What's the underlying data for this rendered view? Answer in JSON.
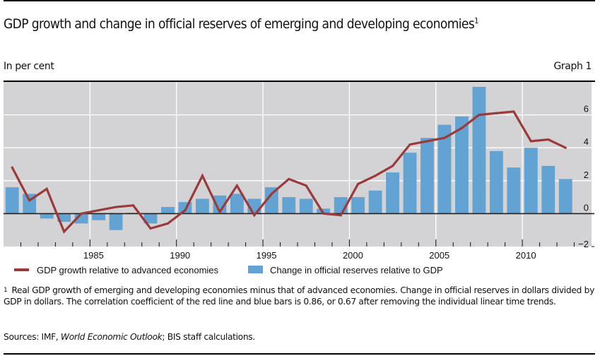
{
  "header": {
    "title": "GDP growth and change in official reserves of emerging and developing economies",
    "title_footnote_mark": "1",
    "units": "In per cent",
    "graph_label": "Graph 1"
  },
  "footnote": {
    "mark": "1",
    "text": "Real GDP growth of emerging and developing economies minus that of advanced economies. Change in official reserves in dollars divided by GDP in dollars. The correlation coefficient of the red line and blue bars is 0.86, or 0.67 after removing the individual linear time trends."
  },
  "sources": {
    "prefix": "Sources: IMF, ",
    "publication": "World Economic Outlook",
    "suffix": "; BIS staff calculations."
  },
  "colors": {
    "bar": "#62a3d4",
    "line": "#9b3a3a",
    "plot_background": "#d3d3d5",
    "gridline": "#ffffff"
  },
  "chart_data": {
    "type": "bar+line",
    "title": "GDP growth and change in official reserves of emerging and developing economies",
    "ylabel": "In per cent",
    "xlabel": "",
    "xlim": [
      1980,
      2014
    ],
    "ylim": [
      -2,
      8
    ],
    "y_ticks": [
      -2,
      0,
      2,
      4,
      6
    ],
    "y_tick_labels": [
      "−2",
      "0",
      "2",
      "4",
      "6"
    ],
    "y_axis_side": "right",
    "x_ticks": [
      1985,
      1990,
      1995,
      2000,
      2005,
      2010
    ],
    "x_tick_labels": [
      "1985",
      "1990",
      "1995",
      "2000",
      "2005",
      "2010"
    ],
    "grid": true,
    "legend_position": "bottom",
    "categories": [
      1980,
      1981,
      1982,
      1983,
      1984,
      1985,
      1986,
      1987,
      1988,
      1989,
      1990,
      1991,
      1992,
      1993,
      1994,
      1995,
      1996,
      1997,
      1998,
      1999,
      2000,
      2001,
      2002,
      2003,
      2004,
      2005,
      2006,
      2007,
      2008,
      2009,
      2010,
      2011,
      2012
    ],
    "series": [
      {
        "name": "GDP growth relative to advanced economies",
        "type": "line",
        "values": [
          2.8,
          0.8,
          1.5,
          -1.1,
          0.0,
          0.2,
          0.4,
          0.5,
          -0.9,
          -0.6,
          0.2,
          2.3,
          0.1,
          1.7,
          -0.1,
          1.2,
          2.1,
          1.7,
          0.0,
          -0.1,
          1.8,
          2.3,
          2.9,
          4.2,
          4.4,
          4.6,
          5.2,
          6.0,
          6.1,
          6.2,
          4.4,
          4.5,
          4.0
        ]
      },
      {
        "name": "Change in official reserves relative to GDP",
        "type": "bar",
        "values": [
          1.6,
          1.2,
          -0.3,
          -0.5,
          -0.6,
          -0.4,
          -1.0,
          0.05,
          -0.6,
          0.4,
          0.7,
          0.9,
          1.1,
          1.2,
          0.9,
          1.6,
          1.0,
          0.9,
          0.3,
          1.0,
          1.0,
          1.4,
          2.5,
          3.7,
          4.6,
          5.4,
          5.9,
          7.7,
          3.8,
          2.8,
          4.0,
          2.9,
          2.1
        ]
      }
    ]
  }
}
